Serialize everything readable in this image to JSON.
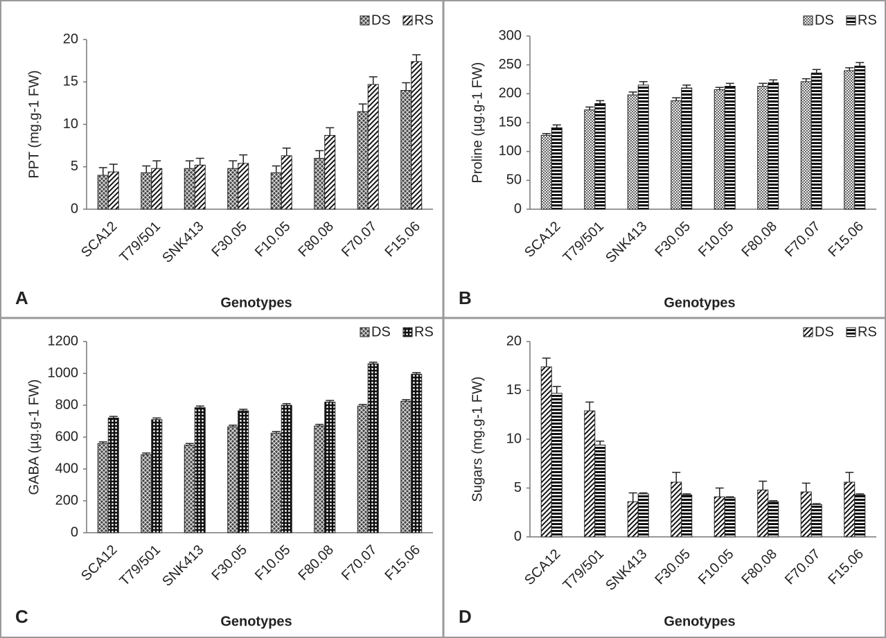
{
  "chart_data": [
    {
      "type": "bar",
      "panel": "A",
      "y_label": "PPT (mg.g-1 FW)",
      "x_label": "Genotypes",
      "categories": [
        "SCA12",
        "T79/501",
        "SNK413",
        "F30.05",
        "F10.05",
        "F80.08",
        "F70.07",
        "F15.06"
      ],
      "series": [
        {
          "name": "DS",
          "pattern": "crosshatch",
          "values": [
            4.0,
            4.3,
            4.8,
            4.8,
            4.3,
            6.0,
            11.5,
            14.0
          ],
          "errors": [
            0.9,
            0.8,
            0.9,
            0.9,
            0.8,
            0.9,
            0.9,
            0.9
          ]
        },
        {
          "name": "RS",
          "pattern": "diagonal",
          "values": [
            4.4,
            4.8,
            5.2,
            5.4,
            6.3,
            8.7,
            14.7,
            17.4
          ],
          "errors": [
            0.9,
            0.9,
            0.8,
            1.0,
            0.9,
            0.9,
            0.9,
            0.8
          ]
        }
      ],
      "ylim": [
        0,
        20
      ],
      "yticks": [
        0,
        5,
        10,
        15,
        20
      ]
    },
    {
      "type": "bar",
      "panel": "B",
      "y_label": "Proline (µg.g-1 FW)",
      "x_label": "Genotypes",
      "categories": [
        "SCA12",
        "T79/501",
        "SNK413",
        "F30.05",
        "F10.05",
        "F80.08",
        "F70.07",
        "F15.06"
      ],
      "series": [
        {
          "name": "DS",
          "pattern": "checker",
          "values": [
            128,
            172,
            198,
            188,
            207,
            213,
            221,
            240
          ],
          "errors": [
            3,
            5,
            5,
            5,
            4,
            5,
            5,
            5
          ]
        },
        {
          "name": "RS",
          "pattern": "hstripe",
          "values": [
            141,
            183,
            215,
            210,
            213,
            219,
            236,
            248
          ],
          "errors": [
            5,
            5,
            6,
            5,
            5,
            5,
            6,
            6
          ]
        }
      ],
      "ylim": [
        0,
        300
      ],
      "yticks": [
        0,
        50,
        100,
        150,
        200,
        250,
        300
      ]
    },
    {
      "type": "bar",
      "panel": "C",
      "y_label": "GABA  (µg.g-1 FW)",
      "x_label": "Genotypes",
      "categories": [
        "SCA12",
        "T79/501",
        "SNK413",
        "F30.05",
        "F10.05",
        "F80.08",
        "F70.07",
        "F15.06"
      ],
      "series": [
        {
          "name": "DS",
          "pattern": "crosshatch",
          "values": [
            560,
            490,
            550,
            665,
            625,
            670,
            795,
            825
          ],
          "errors": [
            10,
            10,
            10,
            10,
            10,
            10,
            10,
            10
          ]
        },
        {
          "name": "RS",
          "pattern": "dots",
          "values": [
            720,
            710,
            785,
            765,
            800,
            820,
            1060,
            995
          ],
          "errors": [
            10,
            10,
            10,
            10,
            10,
            10,
            10,
            10
          ]
        }
      ],
      "ylim": [
        0,
        1200
      ],
      "yticks": [
        0,
        200,
        400,
        600,
        800,
        1000,
        1200
      ]
    },
    {
      "type": "bar",
      "panel": "D",
      "y_label": "Sugars (mg.g-1 FW)",
      "x_label": "Genotypes",
      "categories": [
        "SCA12",
        "T79/501",
        "SNK413",
        "F30.05",
        "F10.05",
        "F80.08",
        "F70.07",
        "F15.06"
      ],
      "series": [
        {
          "name": "DS",
          "pattern": "diagonal",
          "values": [
            17.4,
            12.9,
            3.6,
            5.6,
            4.1,
            4.8,
            4.6,
            5.6
          ],
          "errors": [
            0.9,
            0.9,
            0.9,
            1.0,
            0.9,
            0.9,
            0.9,
            1.0
          ]
        },
        {
          "name": "RS",
          "pattern": "hstripe",
          "values": [
            14.7,
            9.4,
            4.4,
            4.3,
            4.0,
            3.6,
            3.3,
            4.3
          ],
          "errors": [
            0.7,
            0.4,
            0.1,
            0.1,
            0.1,
            0.1,
            0.1,
            0.1
          ]
        }
      ],
      "ylim": [
        0,
        20
      ],
      "yticks": [
        0,
        5,
        10,
        15,
        20
      ]
    }
  ]
}
